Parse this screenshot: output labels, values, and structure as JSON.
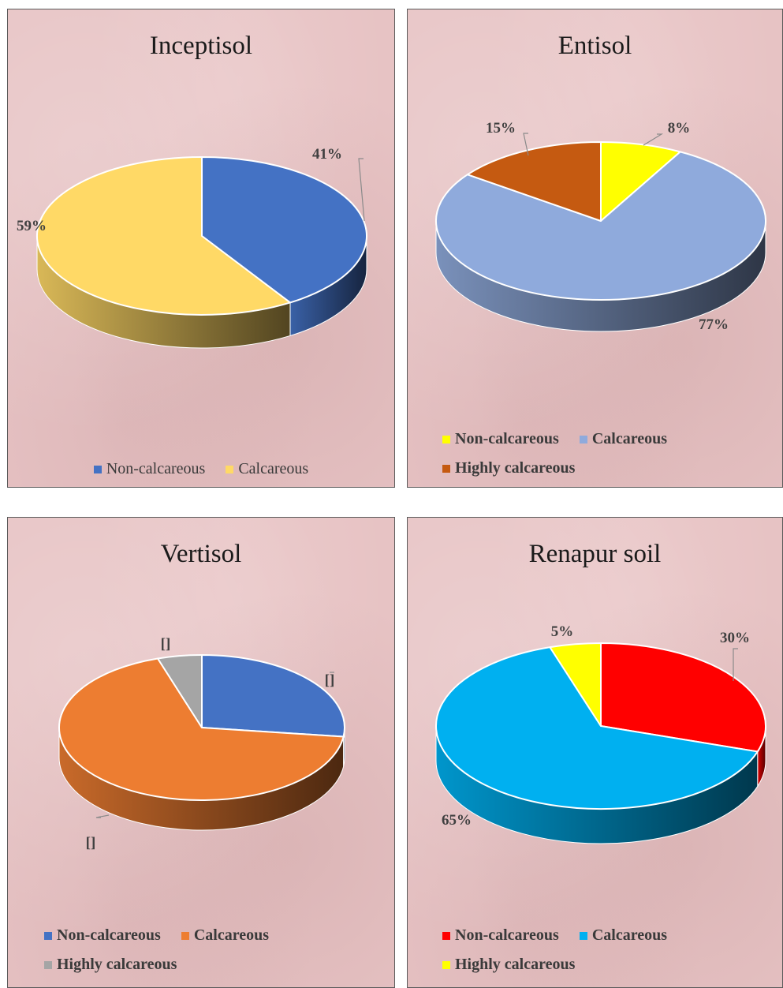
{
  "chart_data": [
    {
      "type": "pie",
      "title": "Inceptisol",
      "slices": [
        {
          "name": "Non-calcareous",
          "value": 41,
          "label": "41%",
          "color": "#4472c4"
        },
        {
          "name": "Calcareous",
          "value": 59,
          "label": "59%",
          "color": "#ffd966"
        }
      ],
      "legend_rows": [
        [
          0,
          1
        ]
      ],
      "legend_placement": "bottom"
    },
    {
      "type": "pie",
      "title": "Entisol",
      "slices": [
        {
          "name": "Non-calcareous",
          "value": 8,
          "label": "8%",
          "color": "#ffff00"
        },
        {
          "name": "Calcareous",
          "value": 77,
          "label": "77%",
          "color": "#8faadc"
        },
        {
          "name": "Highly calcareous",
          "value": 15,
          "label": "15%",
          "color": "#c55a11"
        }
      ],
      "legend_rows": [
        [
          0,
          1
        ],
        [
          2
        ]
      ],
      "legend_placement": "bottom"
    },
    {
      "type": "pie",
      "title": "Vertisol",
      "slices": [
        {
          "name": "Non-calcareous",
          "value": 27,
          "label": "[]",
          "color": "#4472c4"
        },
        {
          "name": "Calcareous",
          "value": 68,
          "label": "[]",
          "color": "#ed7d31"
        },
        {
          "name": "Highly calcareous",
          "value": 5,
          "label": "[]",
          "color": "#a5a5a5"
        }
      ],
      "legend_rows": [
        [
          0,
          1
        ],
        [
          2
        ]
      ],
      "legend_placement": "bottom"
    },
    {
      "type": "pie",
      "title": "Renapur  soil",
      "slices": [
        {
          "name": "Non-calcareous",
          "value": 30,
          "label": "30%",
          "color": "#ff0000"
        },
        {
          "name": "Calcareous",
          "value": 65,
          "label": "65%",
          "color": "#00b0f0"
        },
        {
          "name": "Highly calcareous",
          "value": 5,
          "label": "5%",
          "color": "#ffff00"
        }
      ],
      "legend_rows": [
        [
          0,
          1
        ],
        [
          2
        ]
      ],
      "legend_placement": "bottom"
    }
  ]
}
